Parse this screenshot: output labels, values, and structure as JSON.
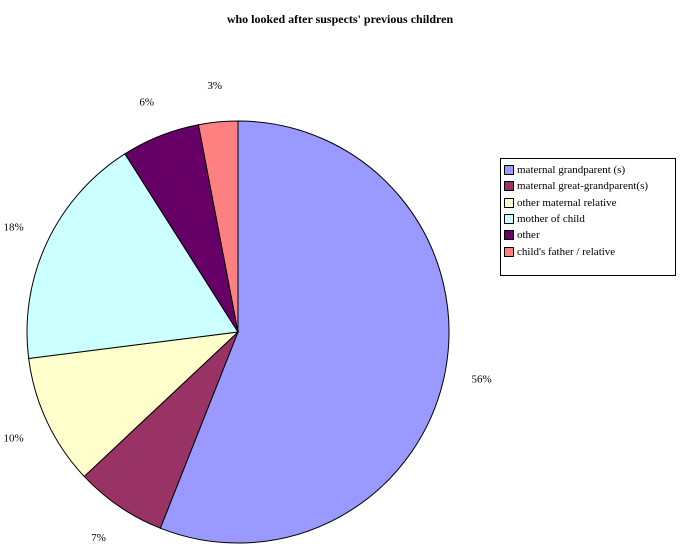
{
  "chart_data": {
    "type": "pie",
    "title": "who looked after suspects' previous children",
    "slices": [
      {
        "label": "maternal grandparent (s)",
        "value": 56,
        "display": "56%",
        "color": "#9999ff"
      },
      {
        "label": "maternal great-grandparent(s)",
        "value": 7,
        "display": "7%",
        "color": "#993366"
      },
      {
        "label": "other maternal relative",
        "value": 10,
        "display": "10%",
        "color": "#ffffcc"
      },
      {
        "label": "mother of child",
        "value": 18,
        "display": "18%",
        "color": "#ccffff"
      },
      {
        "label": "other",
        "value": 6,
        "display": "6%",
        "color": "#660066"
      },
      {
        "label": "child's father / relative",
        "value": 3,
        "display": "3%",
        "color": "#ff8080"
      }
    ],
    "legend_position": "right"
  }
}
